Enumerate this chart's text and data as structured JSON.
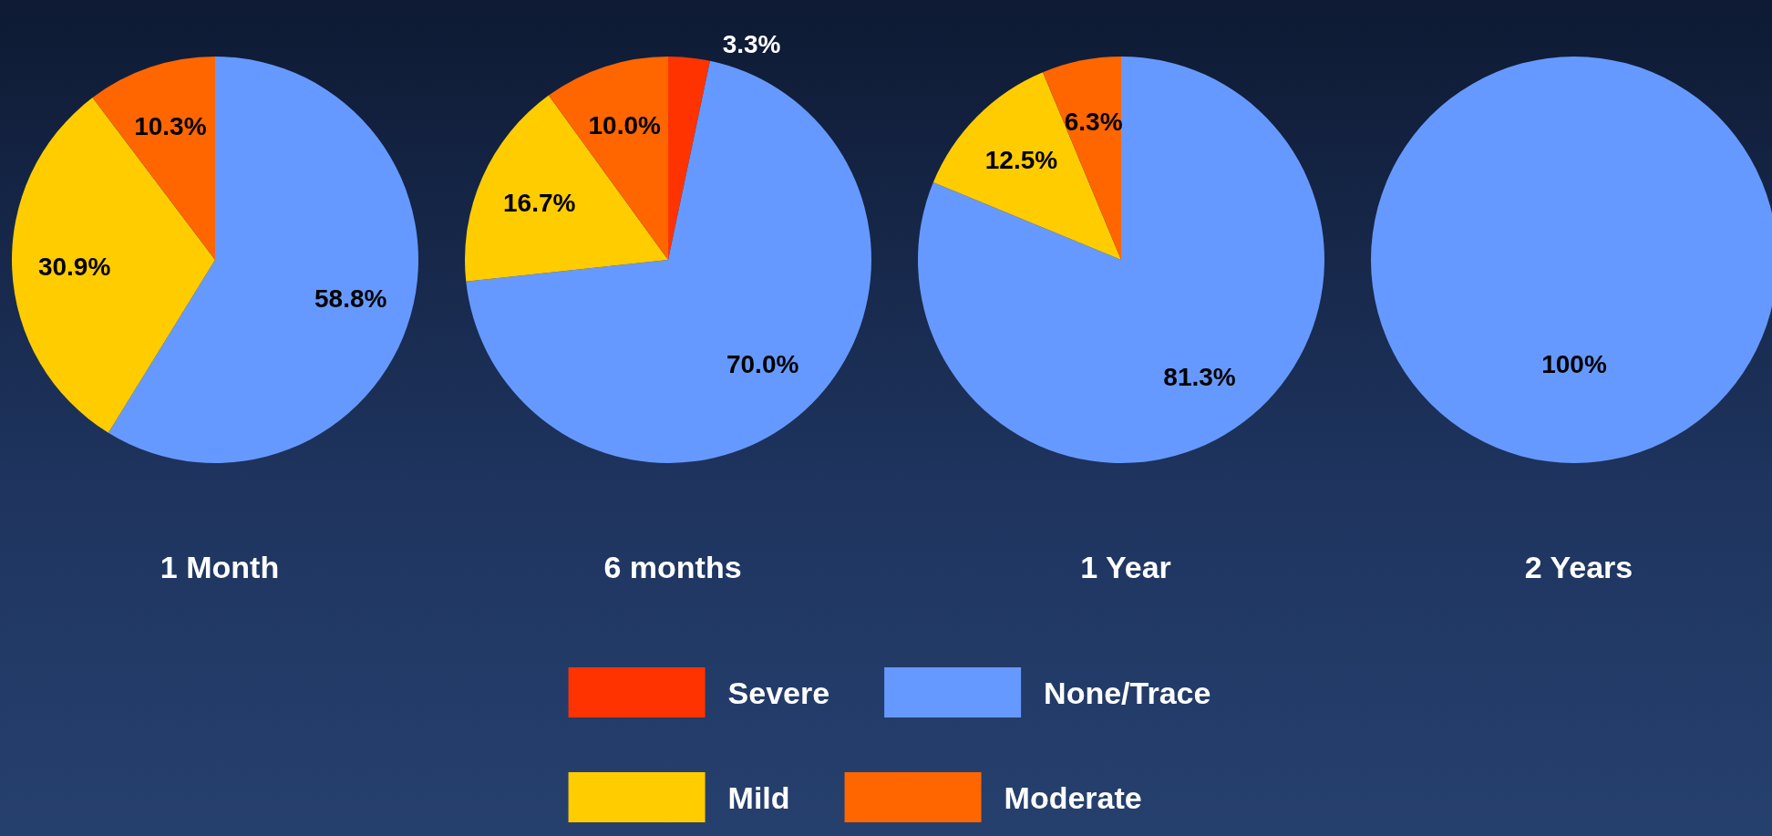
{
  "chart_data": [
    {
      "type": "pie",
      "title": "1 Month",
      "categories": [
        null,
        null,
        null
      ],
      "values": [
        58.8,
        30.9,
        10.3
      ],
      "colors": [
        "#6699ff",
        "#ffcc00",
        "#ff6600"
      ],
      "value_labels": [
        "58.8%",
        "30.9%",
        "10.3%"
      ]
    },
    {
      "type": "pie",
      "title": "6 months",
      "categories": [
        "Severe",
        "None/Trace",
        "Mild",
        "Moderate"
      ],
      "values": [
        3.3,
        70.0,
        16.7,
        10.0
      ],
      "colors": [
        "#ff3300",
        "#6699ff",
        "#ffcc00",
        "#ff6600"
      ],
      "value_labels": [
        "3.3%",
        "70.0%",
        "16.7%",
        "10.0%"
      ],
      "legend": "bottom"
    },
    {
      "type": "pie",
      "title": "1 Year",
      "categories": [
        null,
        null,
        null
      ],
      "values": [
        81.3,
        12.5,
        6.3
      ],
      "colors": [
        "#6699ff",
        "#ffcc00",
        "#ff6600"
      ],
      "value_labels": [
        "81.3%",
        "12.5%",
        "6.3%"
      ]
    },
    {
      "type": "pie",
      "title": "2 Years",
      "categories": [
        null
      ],
      "values": [
        100
      ],
      "colors": [
        "#6699ff"
      ],
      "value_labels": [
        "100%"
      ]
    }
  ]
}
